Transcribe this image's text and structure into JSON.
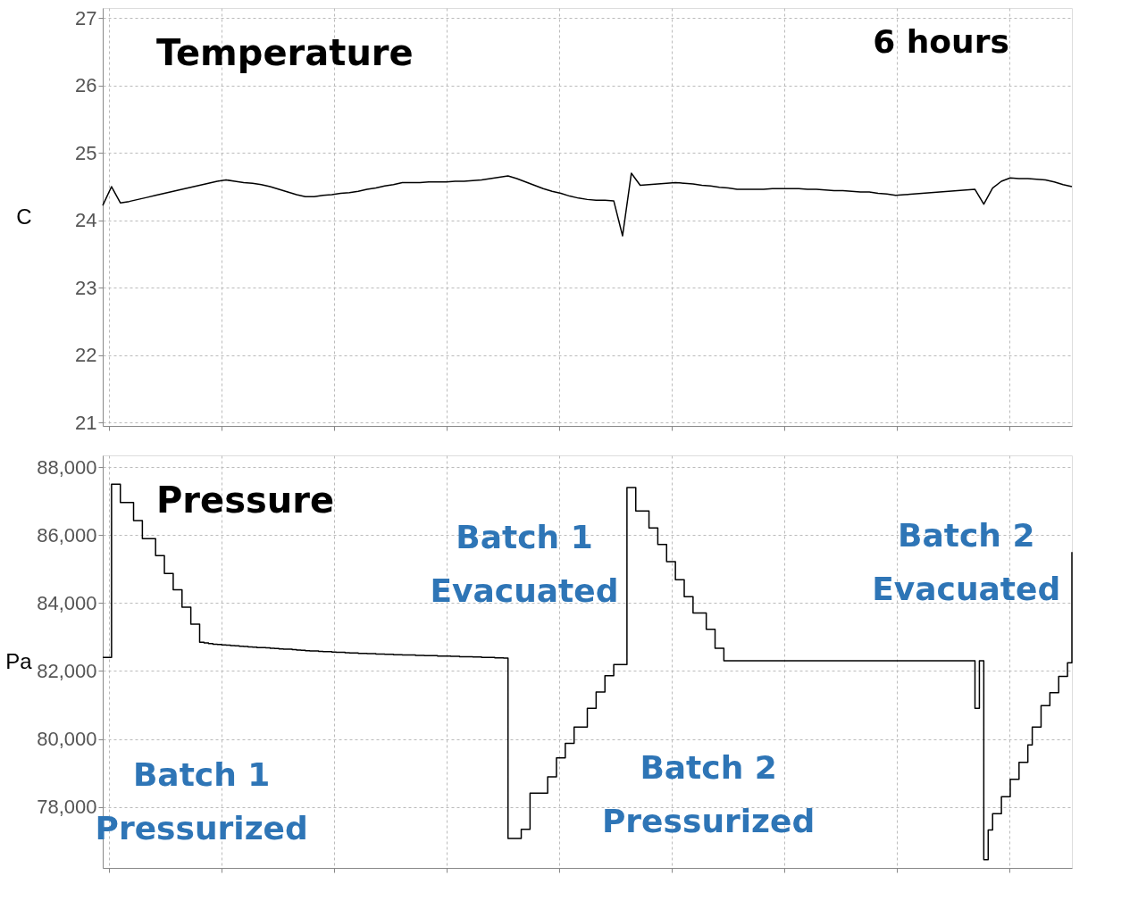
{
  "chart_data": [
    {
      "type": "line",
      "title": "Temperature",
      "ylabel": "C",
      "categories": [
        null,
        null,
        null,
        null,
        null,
        null,
        null,
        null,
        null,
        null,
        null,
        null,
        null,
        null,
        null,
        null,
        null,
        null,
        null,
        null,
        null,
        null,
        null,
        null,
        null,
        null,
        null,
        null,
        null,
        null,
        null,
        null,
        null,
        null,
        null,
        null,
        null,
        null,
        null,
        null,
        null,
        null,
        null,
        null,
        null,
        null,
        null,
        null,
        null,
        null,
        null,
        null,
        null,
        null,
        null,
        null,
        null,
        null,
        null,
        null,
        null,
        null,
        null,
        null,
        null,
        null,
        null,
        null,
        null,
        null,
        null,
        null,
        null,
        null,
        null,
        null,
        null,
        null,
        null,
        null,
        null,
        null,
        null,
        null,
        null,
        null,
        null,
        null,
        null,
        null,
        null,
        null,
        null,
        null,
        null,
        null,
        null,
        null,
        null,
        null,
        null,
        null,
        null,
        null,
        null,
        null,
        null,
        null,
        null,
        null,
        null
      ],
      "ylim": [
        20.95,
        27.15
      ],
      "yticks": [
        21,
        22,
        23,
        24,
        25,
        26,
        27
      ],
      "grid": true,
      "tick_labels": "y",
      "series": [
        {
          "color": "#000000",
          "values": [
            24.22,
            24.5,
            24.26,
            24.28,
            24.31,
            24.34,
            24.37,
            24.4,
            24.43,
            24.46,
            24.49,
            24.52,
            24.55,
            24.58,
            24.6,
            24.58,
            24.56,
            24.55,
            24.53,
            24.5,
            24.46,
            24.42,
            24.38,
            24.35,
            24.35,
            24.37,
            24.38,
            24.4,
            24.41,
            24.43,
            24.46,
            24.48,
            24.51,
            24.53,
            24.56,
            24.56,
            24.56,
            24.57,
            24.57,
            24.57,
            24.58,
            24.58,
            24.59,
            24.6,
            24.62,
            24.64,
            24.66,
            24.62,
            24.57,
            24.52,
            24.47,
            24.43,
            24.4,
            24.36,
            24.33,
            24.31,
            24.3,
            24.3,
            24.29,
            23.77,
            24.7,
            24.52,
            24.53,
            24.54,
            24.55,
            24.56,
            24.55,
            24.54,
            24.52,
            24.51,
            24.49,
            24.48,
            24.46,
            24.46,
            24.46,
            24.46,
            24.47,
            24.47,
            24.47,
            24.47,
            24.46,
            24.46,
            24.45,
            24.44,
            24.44,
            24.43,
            24.42,
            24.42,
            24.4,
            24.39,
            24.37,
            24.38,
            24.39,
            24.4,
            24.41,
            24.42,
            24.43,
            24.44,
            24.45,
            24.46,
            24.24,
            24.48,
            24.58,
            24.63,
            24.62,
            24.62,
            24.61,
            24.6,
            24.57,
            24.53,
            24.5
          ]
        }
      ],
      "annotations": [
        "6 hours"
      ]
    },
    {
      "type": "step",
      "title": "Pressure",
      "ylabel": "Pa",
      "categories": [
        null,
        null,
        null,
        null,
        null,
        null,
        null,
        null,
        null,
        null,
        null,
        null,
        null,
        null,
        null,
        null,
        null,
        null,
        null,
        null,
        null,
        null,
        null,
        null,
        null,
        null,
        null,
        null,
        null,
        null,
        null,
        null,
        null,
        null,
        null,
        null,
        null,
        null,
        null,
        null,
        null,
        null,
        null,
        null,
        null,
        null,
        null,
        null,
        null,
        null,
        null,
        null,
        null,
        null,
        null,
        null,
        null,
        null,
        null,
        null,
        null,
        null,
        null,
        null,
        null,
        null,
        null,
        null,
        null,
        null,
        null,
        null,
        null,
        null,
        null,
        null,
        null,
        null,
        null,
        null,
        null,
        null,
        null,
        null,
        null,
        null,
        null,
        null,
        null,
        null,
        null,
        null,
        null,
        null,
        null,
        null,
        null,
        null,
        null,
        null,
        null,
        null,
        null,
        null,
        null,
        null,
        null,
        null,
        null,
        null,
        null,
        null,
        null,
        null,
        null,
        null,
        null,
        null,
        null,
        null,
        null,
        null,
        null,
        null,
        null,
        null,
        null,
        null,
        null,
        null,
        null,
        null,
        null,
        null,
        null,
        null,
        null,
        null,
        null,
        null,
        null,
        null,
        null,
        null,
        null,
        null,
        null,
        null,
        null,
        null,
        null,
        null,
        null,
        null,
        null,
        null,
        null,
        null,
        null,
        null,
        null,
        null,
        null,
        null,
        null,
        null,
        null,
        null,
        null,
        null,
        null,
        null,
        null,
        null,
        null,
        null,
        null,
        null,
        null,
        null,
        null,
        null,
        null,
        null,
        null,
        null,
        null,
        null,
        null,
        null,
        null,
        null,
        null,
        null,
        null,
        null,
        null,
        null,
        null,
        null,
        null,
        null,
        null,
        null,
        null,
        null,
        null,
        null,
        null,
        null,
        null,
        null,
        null,
        null,
        null,
        null,
        null,
        null,
        null,
        null,
        null
      ],
      "ylim": [
        76200,
        88350
      ],
      "yticks": [
        {
          "value": 78000,
          "label": "78,000"
        },
        {
          "value": 80000,
          "label": "80,000"
        },
        {
          "value": 82000,
          "label": "82,000"
        },
        {
          "value": 84000,
          "label": "84,000"
        },
        {
          "value": 86000,
          "label": "86,000"
        },
        {
          "value": 88000,
          "label": "88,000"
        }
      ],
      "grid": true,
      "tick_labels": "y",
      "series": [
        {
          "color": "#000000",
          "values": [
            82400,
            82400,
            87500,
            87500,
            86960,
            86960,
            86960,
            86430,
            86430,
            85900,
            85900,
            85900,
            85400,
            85400,
            84870,
            84870,
            84390,
            84390,
            83880,
            83880,
            83380,
            83380,
            82850,
            82830,
            82810,
            82790,
            82780,
            82770,
            82760,
            82750,
            82740,
            82730,
            82720,
            82710,
            82700,
            82690,
            82690,
            82680,
            82670,
            82660,
            82650,
            82640,
            82640,
            82630,
            82620,
            82610,
            82600,
            82590,
            82590,
            82580,
            82570,
            82570,
            82560,
            82550,
            82550,
            82540,
            82530,
            82530,
            82520,
            82520,
            82510,
            82510,
            82500,
            82500,
            82490,
            82490,
            82480,
            82480,
            82470,
            82470,
            82470,
            82460,
            82460,
            82450,
            82450,
            82450,
            82440,
            82440,
            82440,
            82430,
            82430,
            82420,
            82420,
            82420,
            82410,
            82410,
            82400,
            82400,
            82400,
            82390,
            82390,
            82380,
            77070,
            77070,
            77070,
            77340,
            77340,
            78400,
            78400,
            78400,
            78400,
            78880,
            78880,
            79440,
            79440,
            79870,
            79870,
            80350,
            80350,
            80350,
            80900,
            80900,
            81380,
            81380,
            81860,
            81860,
            82190,
            82190,
            82190,
            87400,
            87400,
            86710,
            86710,
            86710,
            86210,
            86210,
            85730,
            85730,
            85220,
            85220,
            84690,
            84690,
            84190,
            84190,
            83710,
            83710,
            83710,
            83230,
            83230,
            82670,
            82670,
            82300,
            82300,
            82300,
            82300,
            82300,
            82300,
            82300,
            82300,
            82300,
            82300,
            82300,
            82300,
            82300,
            82300,
            82300,
            82300,
            82300,
            82300,
            82300,
            82300,
            82300,
            82300,
            82300,
            82300,
            82300,
            82300,
            82300,
            82300,
            82300,
            82300,
            82300,
            82300,
            82300,
            82300,
            82300,
            82300,
            82300,
            82300,
            82300,
            82300,
            82300,
            82300,
            82300,
            82300,
            82300,
            82300,
            82300,
            82300,
            82300,
            82300,
            82300,
            82300,
            82300,
            82300,
            82300,
            82300,
            82300,
            80900,
            82300,
            76440,
            77320,
            77800,
            77800,
            78300,
            78300,
            78810,
            78810,
            79310,
            79310,
            79820,
            80350,
            80350,
            80980,
            80980,
            81360,
            81360,
            81840,
            81840,
            82240,
            85500
          ]
        }
      ],
      "annotations": [
        "Batch 1\nPressurized",
        "Batch 1\nEvacuated",
        "Batch 2\nPressurized",
        "Batch 2\nEvacuated"
      ]
    }
  ]
}
